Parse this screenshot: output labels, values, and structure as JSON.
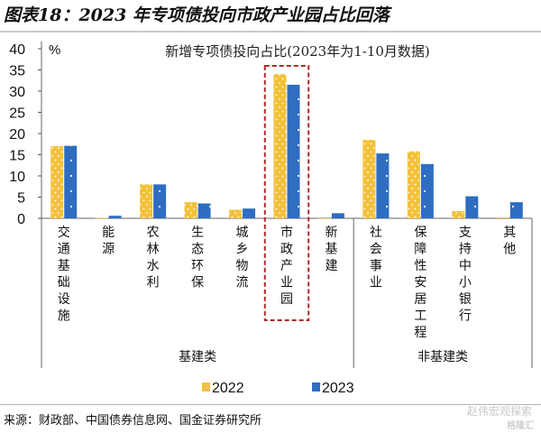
{
  "header": {
    "title": "图表18：2023 年专项债投向市政产业园占比回落"
  },
  "chart_data": {
    "type": "bar",
    "title": "新增专项债投向占比(2023年为1-10月数据)",
    "ylabel": "%",
    "ylim": [
      0,
      40
    ],
    "yticks": [
      0,
      5,
      10,
      15,
      20,
      25,
      30,
      35,
      40
    ],
    "grid": false,
    "legend_position": "bottom",
    "categories": [
      "交通基础设施",
      "能源",
      "农林水利",
      "生态环保",
      "城乡物流",
      "市政产业园",
      "新基建",
      "社会事业",
      "保障性安居工程",
      "支持中小银行",
      "其他"
    ],
    "groups": [
      {
        "label": "基建类",
        "count": 7
      },
      {
        "label": "非基建类",
        "count": 4
      }
    ],
    "highlighted_category": "市政产业园",
    "series": [
      {
        "name": "2022",
        "color": "#F3C13A",
        "values": [
          17.0,
          0.1,
          8.0,
          3.8,
          2.0,
          34.0,
          0.0,
          18.5,
          15.8,
          1.7,
          0.2
        ]
      },
      {
        "name": "2023",
        "color": "#2F6DC1",
        "values": [
          17.1,
          0.6,
          8.0,
          3.5,
          2.3,
          31.5,
          1.2,
          15.3,
          12.8,
          5.2,
          3.8
        ]
      }
    ]
  },
  "footer": {
    "source": "来源：财政部、中国债券信息网、国金证券研究所",
    "watermark": "赵伟宏观探索",
    "watermark2": "格隆汇"
  }
}
